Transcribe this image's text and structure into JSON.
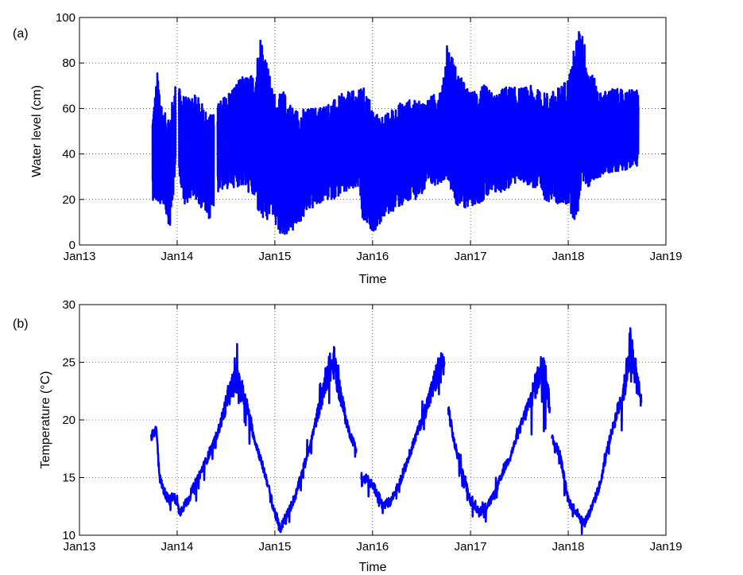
{
  "chart_data": [
    {
      "type": "line",
      "panel_label": "(a)",
      "xlabel": "Time",
      "ylabel": "Water level (cm)",
      "xlim": [
        "Jan13",
        "Jan19"
      ],
      "ylim": [
        0,
        100
      ],
      "xticks": [
        "Jan13",
        "Jan14",
        "Jan15",
        "Jan16",
        "Jan17",
        "Jan18",
        "Jan19"
      ],
      "yticks": [
        0,
        20,
        40,
        60,
        80,
        100
      ],
      "grid": true,
      "color": "#0000ff",
      "series": [
        {
          "x": [
            "2013-10-01",
            "2013-10-20",
            "2013-11-10",
            "2013-12-05",
            "2013-12-26",
            "2014-02-01",
            "2014-03-15",
            "2014-05-01",
            "2014-06-01",
            "2014-07-15",
            "2014-09-01",
            "2014-10-15",
            "2014-11-10",
            "2014-12-01",
            "2014-12-20",
            "2015-01-10",
            "2015-02-01",
            "2015-03-15",
            "2015-05-01",
            "2015-06-15",
            "2015-08-01",
            "2015-09-15",
            "2015-11-10",
            "2015-11-25",
            "2015-12-20",
            "2016-01-10",
            "2016-02-15",
            "2016-04-01",
            "2016-05-15",
            "2016-07-01",
            "2016-08-15",
            "2016-09-20",
            "2016-10-05",
            "2016-11-15",
            "2017-01-01",
            "2017-02-15",
            "2017-04-01",
            "2017-05-15",
            "2017-07-01",
            "2017-08-15",
            "2017-10-01",
            "2017-11-15",
            "2018-01-01",
            "2018-02-01",
            "2018-02-20",
            "2018-03-15",
            "2018-05-01",
            "2018-06-15",
            "2018-08-01",
            "2018-09-20"
          ],
          "min": [
            20,
            17,
            18,
            7,
            30,
            17,
            20,
            10,
            23,
            25,
            26,
            20,
            10,
            8,
            15,
            5,
            4,
            6,
            14,
            18,
            20,
            22,
            25,
            9,
            7,
            6,
            12,
            16,
            18,
            22,
            26,
            28,
            30,
            15,
            17,
            19,
            22,
            24,
            28,
            26,
            20,
            18,
            17,
            8,
            28,
            25,
            30,
            32,
            33,
            35
          ],
          "max": [
            57,
            77,
            58,
            58,
            71,
            65,
            66,
            57,
            62,
            68,
            74,
            75,
            94,
            82,
            70,
            65,
            68,
            60,
            60,
            61,
            63,
            67,
            68,
            70,
            65,
            58,
            57,
            62,
            64,
            63,
            66,
            71,
            90,
            76,
            67,
            71,
            66,
            70,
            69,
            70,
            67,
            68,
            74,
            92,
            97,
            80,
            67,
            69,
            68,
            69
          ]
        }
      ]
    },
    {
      "type": "line",
      "panel_label": "(b)",
      "xlabel": "Time",
      "ylabel": "Temperature (°C)",
      "xlim": [
        "Jan13",
        "Jan19"
      ],
      "ylim": [
        10,
        30
      ],
      "xticks": [
        "Jan13",
        "Jan14",
        "Jan15",
        "Jan16",
        "Jan17",
        "Jan18",
        "Jan19"
      ],
      "yticks": [
        10,
        15,
        20,
        25,
        30
      ],
      "grid": true,
      "color": "#0000ff",
      "series": [
        {
          "segments": [
            {
              "x": [
                "2013-09-25",
                "2013-10-15",
                "2013-10-28",
                "2013-11-10",
                "2013-12-01",
                "2013-12-20",
                "2014-01-10",
                "2014-02-10",
                "2014-03-10",
                "2014-04-10",
                "2014-05-10",
                "2014-06-10",
                "2014-07-10",
                "2014-08-05",
                "2014-08-25",
                "2014-09-20",
                "2014-10-15",
                "2014-11-10",
                "2014-12-05",
                "2014-12-25",
                "2015-01-20",
                "2015-02-20",
                "2015-03-20",
                "2015-04-20",
                "2015-05-20",
                "2015-06-20",
                "2015-07-15",
                "2015-08-10",
                "2015-09-05",
                "2015-10-05",
                "2015-11-01"
              ],
              "y": [
                18.5,
                19.2,
                15,
                14,
                13,
                13.5,
                12,
                13,
                14.5,
                16,
                17.5,
                19.5,
                22,
                23.5,
                23,
                21,
                18.5,
                16.5,
                14.5,
                12.5,
                10.5,
                12,
                13.5,
                16,
                18.5,
                21.5,
                24,
                25,
                22,
                19,
                17.5
              ]
            },
            {
              "x": [
                "2015-11-20",
                "2015-12-10",
                "2016-01-10",
                "2016-02-10",
                "2016-03-10",
                "2016-04-10",
                "2016-05-10",
                "2016-06-10",
                "2016-07-10",
                "2016-08-10",
                "2016-09-05",
                "2016-09-25"
              ],
              "y": [
                14.5,
                15,
                14,
                12.5,
                13,
                14.5,
                16.5,
                18.5,
                20.5,
                22.5,
                24.5,
                25
              ]
            },
            {
              "x": [
                "2016-10-10",
                "2016-11-01",
                "2016-12-01",
                "2017-01-01",
                "2017-02-01",
                "2017-03-01",
                "2017-04-01",
                "2017-05-01",
                "2017-06-01",
                "2017-07-01",
                "2017-08-01",
                "2017-09-01",
                "2017-10-01",
                "2017-10-25"
              ],
              "y": [
                21,
                18,
                15.5,
                13,
                12,
                12.5,
                13.5,
                15.5,
                17,
                19,
                21,
                23,
                25,
                21
              ]
            },
            {
              "x": [
                "2017-11-01",
                "2017-12-01",
                "2018-01-01",
                "2018-02-01",
                "2018-03-01",
                "2018-04-01",
                "2018-05-01",
                "2018-06-01",
                "2018-07-01",
                "2018-08-01",
                "2018-08-20",
                "2018-09-10",
                "2018-10-01"
              ],
              "y": [
                18.5,
                17,
                13,
                12,
                11,
                12.5,
                14.5,
                18,
                20.5,
                23,
                26.5,
                24,
                21.5
              ]
            }
          ],
          "band": [
            2.5,
            1,
            1.5,
            1.5,
            1.5,
            1.5,
            1.5,
            1.5,
            1.5,
            1.5,
            2.5,
            2.5,
            2.5,
            3
          ]
        }
      ]
    }
  ]
}
